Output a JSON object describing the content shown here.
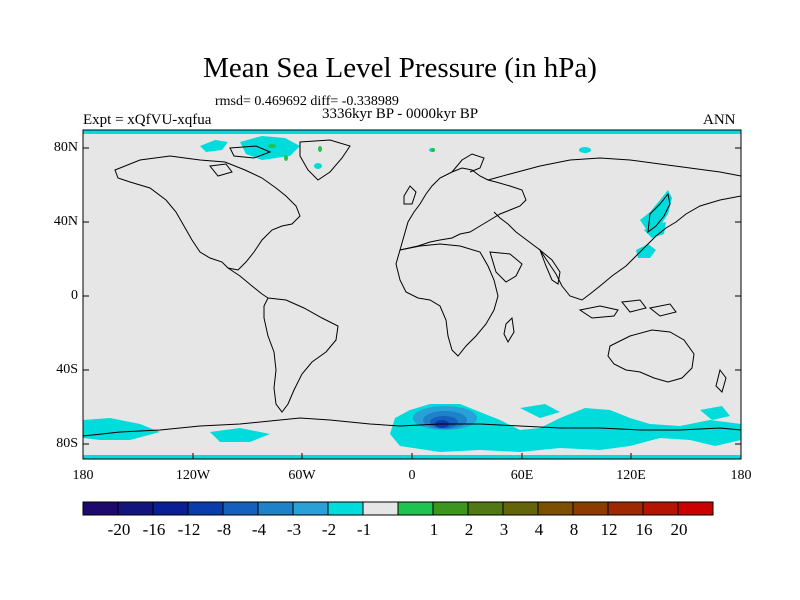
{
  "title": "Mean Sea Level Pressure (in hPa)",
  "stats_line": "rmsd= 0.469692 diff= -0.338989",
  "period_line": "3336kyr BP - 0000kyr BP",
  "left_label": "Expt = xQfVU-xqfua",
  "right_label": "ANN",
  "y_axis_labels": [
    "80N",
    "40N",
    "0",
    "40S",
    "80S"
  ],
  "x_axis_labels": [
    "180",
    "120W",
    "60W",
    "0",
    "60E",
    "120E",
    "180"
  ],
  "colorbar": {
    "tick_labels": [
      "-20",
      "-16",
      "-12",
      "-8",
      "-4",
      "-3",
      "-2",
      "-1",
      "1",
      "2",
      "3",
      "4",
      "8",
      "12",
      "16",
      "20"
    ],
    "colors": [
      "#1e0a6e",
      "#14147f",
      "#0a1e96",
      "#0a3cad",
      "#1460be",
      "#1e82c8",
      "#28a0d8",
      "#00dcdc",
      "#e6e6e6",
      "#1ec350",
      "#3c961e",
      "#507814",
      "#64640a",
      "#7d5000",
      "#8c3c00",
      "#a02800",
      "#b41400",
      "#cd0000"
    ]
  },
  "map": {
    "background_color": "#e6e6e6",
    "anomaly_color": "#00dcdc",
    "positive_color": "#1ec350",
    "deep_negative_color": "#1460be"
  }
}
